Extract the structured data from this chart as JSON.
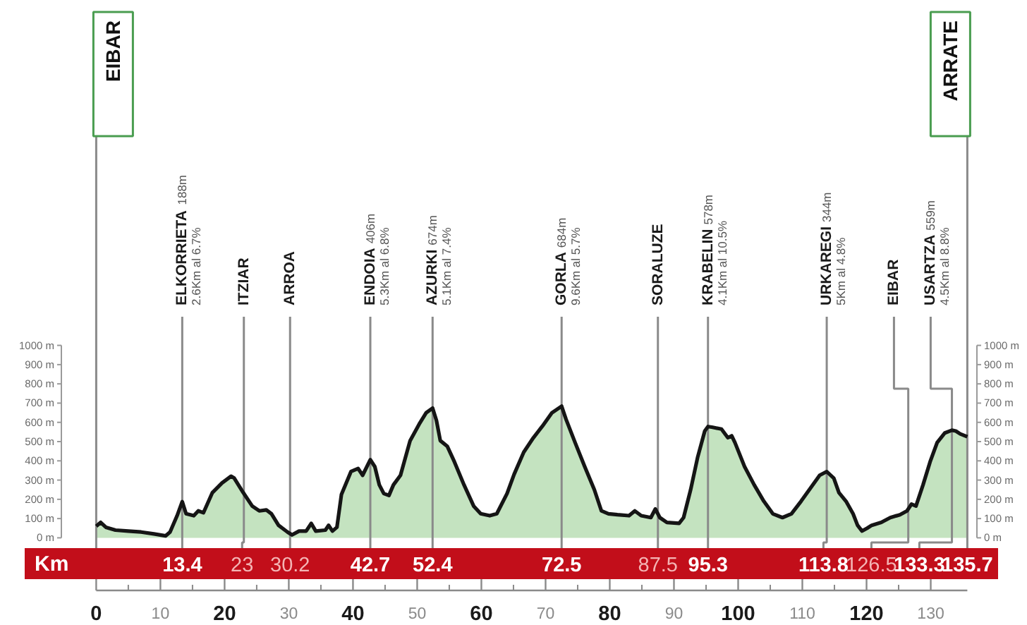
{
  "chart_data": {
    "type": "area",
    "xlabel": "Km",
    "color": "#c4e3c0",
    "x": [
      0,
      0.7,
      1.5,
      3,
      5,
      7,
      9,
      10.8,
      11.5,
      12.6,
      13.4,
      14,
      15.2,
      15.9,
      16.7,
      18.1,
      19.6,
      21,
      21.5,
      22.9,
      24.3,
      25.4,
      26.5,
      27.3,
      28.4,
      29.8,
      30.5,
      31.6,
      32.7,
      33.5,
      34.2,
      35.7,
      36.2,
      36.8,
      37.5,
      38.2,
      39.7,
      40.8,
      41.5,
      42.7,
      43.4,
      44.1,
      44.8,
      45.6,
      46.3,
      47.4,
      48.9,
      50.3,
      51.4,
      52.4,
      53,
      53.6,
      54.7,
      55.8,
      57.3,
      58.8,
      59.9,
      61.3,
      62.4,
      64,
      65.1,
      66.6,
      68.1,
      69.5,
      71,
      72.5,
      73.2,
      74.6,
      76.1,
      77.6,
      78.7,
      79.8,
      81.2,
      83,
      83.9,
      84.9,
      86.4,
      87.1,
      87.8,
      88.9,
      90.8,
      91.5,
      92.6,
      93.7,
      94.8,
      95.3,
      95.9,
      97.4,
      98.4,
      99,
      99.5,
      101,
      102.5,
      104,
      105.4,
      106.9,
      108.3,
      109.8,
      111.3,
      112.7,
      113.8,
      114.9,
      115.7,
      116.8,
      117.9,
      118.6,
      119.3,
      120.1,
      120.8,
      122.3,
      123.7,
      125.2,
      126.3,
      127,
      127.7,
      128.8,
      129.9,
      131,
      132.2,
      133.3,
      133.9,
      134.6,
      135.7
    ],
    "values": [
      60,
      80,
      55,
      40,
      35,
      30,
      20,
      10,
      30,
      115,
      188,
      125,
      115,
      140,
      130,
      235,
      285,
      320,
      310,
      235,
      165,
      140,
      145,
      125,
      65,
      30,
      15,
      35,
      35,
      75,
      35,
      40,
      65,
      35,
      55,
      225,
      345,
      360,
      325,
      406,
      370,
      275,
      230,
      220,
      275,
      325,
      505,
      590,
      650,
      674,
      610,
      505,
      475,
      395,
      275,
      165,
      125,
      115,
      125,
      230,
      330,
      445,
      520,
      580,
      650,
      684,
      615,
      495,
      370,
      250,
      140,
      125,
      120,
      115,
      140,
      115,
      105,
      150,
      105,
      80,
      75,
      105,
      250,
      420,
      555,
      578,
      575,
      565,
      520,
      530,
      495,
      370,
      275,
      190,
      125,
      105,
      125,
      190,
      260,
      325,
      344,
      310,
      235,
      190,
      125,
      65,
      35,
      50,
      65,
      80,
      105,
      120,
      140,
      175,
      165,
      275,
      395,
      495,
      545,
      559,
      555,
      540,
      525
    ],
    "xlim": [
      0,
      135.7
    ],
    "xticks": [
      0,
      10,
      20,
      30,
      40,
      50,
      60,
      70,
      80,
      90,
      100,
      110,
      120,
      130
    ],
    "ylim": [
      0,
      1000
    ],
    "yticks": [
      {
        "value": 0,
        "label": "0 m"
      },
      {
        "value": 100,
        "label": "100 m"
      },
      {
        "value": 200,
        "label": "200 m"
      },
      {
        "value": 300,
        "label": "300 m"
      },
      {
        "value": 400,
        "label": "400 m"
      },
      {
        "value": 500,
        "label": "500 m"
      },
      {
        "value": 600,
        "label": "600 m"
      },
      {
        "value": 700,
        "label": "700 m"
      },
      {
        "value": 800,
        "label": "800 m"
      },
      {
        "value": 900,
        "label": "900 m"
      },
      {
        "value": 1000,
        "label": "1000 m"
      }
    ],
    "y2lim": [
      0,
      1000
    ],
    "y2ticks": [
      {
        "value": 0,
        "label": "0 m"
      },
      {
        "value": 100,
        "label": "100 m"
      },
      {
        "value": 200,
        "label": "200 m"
      },
      {
        "value": 300,
        "label": "300 m"
      },
      {
        "value": 400,
        "label": "400 m"
      },
      {
        "value": 500,
        "label": "500 m"
      },
      {
        "value": 600,
        "label": "600 m"
      },
      {
        "value": 700,
        "label": "700 m"
      },
      {
        "value": 800,
        "label": "800 m"
      },
      {
        "value": 900,
        "label": "900 m"
      },
      {
        "value": 1000,
        "label": "1000 m"
      }
    ],
    "ref_lines": [
      {
        "axis": "x",
        "value": 0
      },
      {
        "axis": "x",
        "value": 13.4,
        "label": "13.4"
      },
      {
        "axis": "x",
        "value": 23,
        "label": "23"
      },
      {
        "axis": "x",
        "value": 30.2,
        "label": "30.2"
      },
      {
        "axis": "x",
        "value": 42.7,
        "label": "42.7"
      },
      {
        "axis": "x",
        "value": 52.4,
        "label": "52.4"
      },
      {
        "axis": "x",
        "value": 72.5,
        "label": "72.5"
      },
      {
        "axis": "x",
        "value": 87.5,
        "label": "87.5"
      },
      {
        "axis": "x",
        "value": 95.3,
        "label": "95.3"
      },
      {
        "axis": "x",
        "value": 113.8,
        "label": "113.8"
      },
      {
        "axis": "x",
        "value": 126.5,
        "label": "126.5"
      },
      {
        "axis": "x",
        "value": 133.3,
        "label": "133.3"
      },
      {
        "axis": "x",
        "value": 135.7,
        "label": "135.7"
      }
    ],
    "annotations": [
      "EIBAR",
      "ELKORRIETA",
      "188m",
      "2.6Km al 6.7%",
      "ITZIAR",
      "ARROA",
      "ENDOIA",
      "406m",
      "5.3Km al 6.8%",
      "AZURKI",
      "674m",
      "5.1Km al 7.4%",
      "GORLA",
      "684m",
      "9.6Km al 5.7%",
      "SORALUZE",
      "KRABELIN",
      "578m",
      "4.1Km al 10.5%",
      "URKAREGI",
      "344m",
      "5Km al 4.8%",
      "EIBAR",
      "USARTZA",
      "559m",
      "4.5Km al 8.8%",
      "ARRATE"
    ]
  }
}
